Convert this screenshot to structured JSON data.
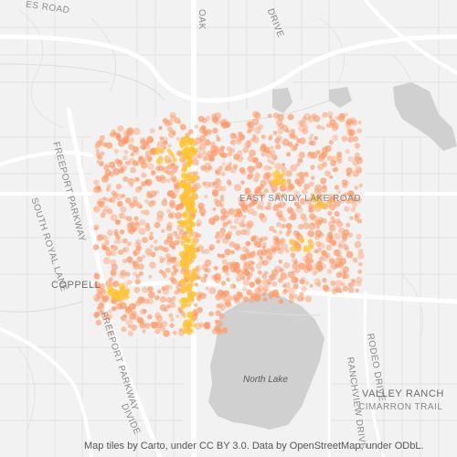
{
  "map": {
    "labels": {
      "coppell": "COPPELL",
      "east_sandy_lake_road": "EAST SANDY LAKE ROAD",
      "freeport_parkway_upper": "FREEPORT PARKWAY",
      "freeport_parkway_lower": "FREEPORT PARKWAY",
      "south_royal_lane": "SOUTH ROYAL LANE",
      "oak_drive": "OAK",
      "drive_top": "DRIVE",
      "top_road": "ES ROAD",
      "north_lake": "North Lake",
      "valley_ranch": "VALLEY RANCH",
      "cimarron_trail": "CIMARRON TRAIL",
      "rodeo_drive": "RODEO DRIVE",
      "ranchview_drive": "RANCHVIEW DRIVE",
      "divider": "DIVIDE"
    },
    "point_color": "#ff9966",
    "dense_color": "#ffc533",
    "water_color": "#d0d0d0"
  },
  "attribution": "Map tiles by Carto, under CC BY 3.0. Data by OpenStreetMap, under ODbL."
}
